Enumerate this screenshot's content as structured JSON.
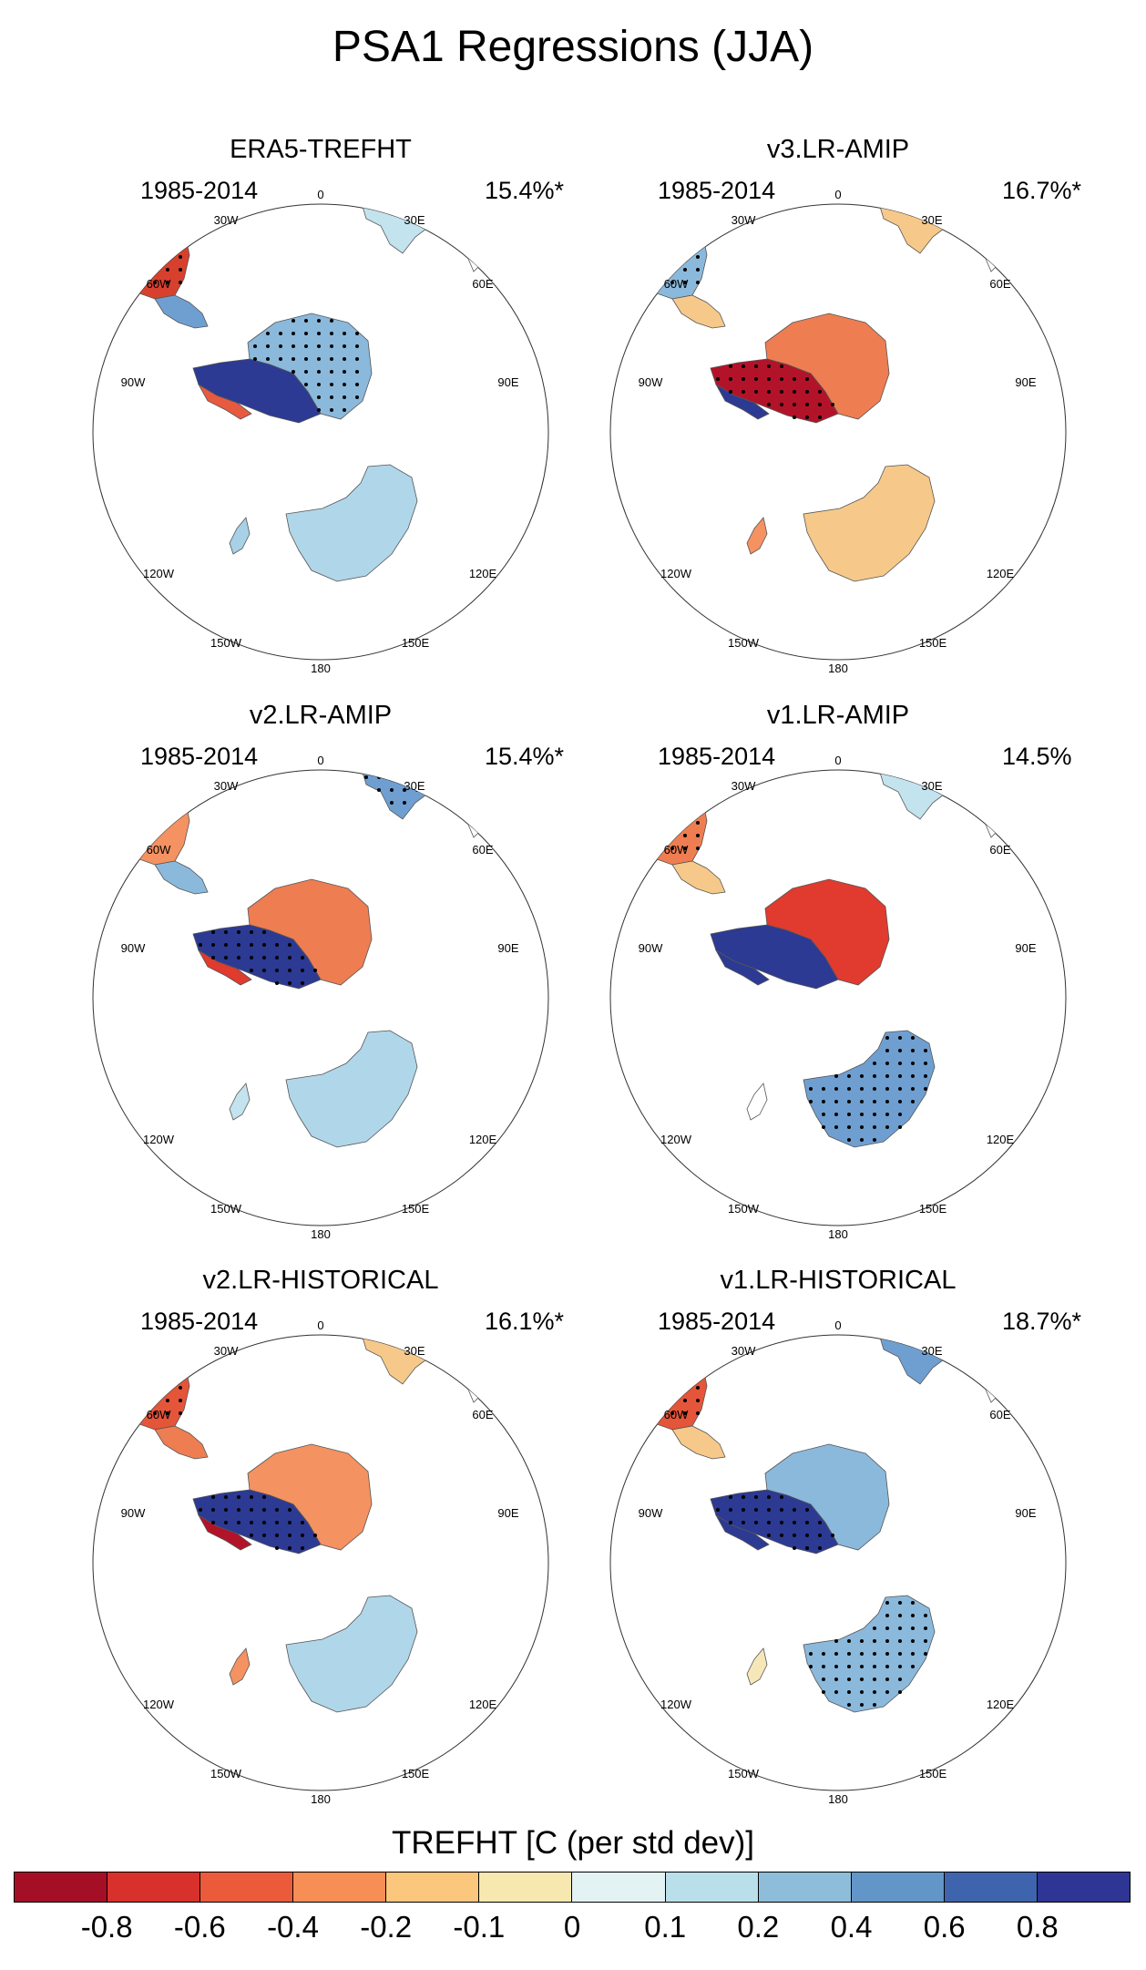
{
  "figure_title": "PSA1 Regressions (JJA)",
  "lon_labels": [
    "0",
    "30E",
    "60E",
    "90E",
    "120E",
    "150E",
    "180",
    "150W",
    "120W",
    "90W",
    "60W",
    "30W"
  ],
  "panels": [
    {
      "title": "ERA5-TREFHT",
      "period": "1985-2014",
      "variance": "15.4%*",
      "regions": {
        "south_america": "#d8402e",
        "s_am_tip": "#6f9fd1",
        "africa": "#c3e3ee",
        "antarctica_east": "#8ab9dc",
        "antarctica_west": "#2c3a93",
        "peninsula": "#e85a3f",
        "australia": "#b0d6ea",
        "nz": "#a8d0e6"
      },
      "stippled": [
        "south_america",
        "antarctica_east"
      ]
    },
    {
      "title": "v3.LR-AMIP",
      "period": "1985-2014",
      "variance": "16.7%*",
      "regions": {
        "south_america": "#8ab9dc",
        "s_am_tip": "#f6c98a",
        "africa": "#f6c98a",
        "antarctica_east": "#ee7d52",
        "antarctica_west": "#b31329",
        "peninsula": "#2c3a93",
        "australia": "#f6c98a",
        "nz": "#f49261"
      },
      "stippled": [
        "antarctica_west",
        "south_america"
      ]
    },
    {
      "title": "v2.LR-AMIP",
      "period": "1985-2014",
      "variance": "15.4%*",
      "regions": {
        "south_america": "#f49261",
        "s_am_tip": "#8ab9dc",
        "africa": "#6f9fd1",
        "antarctica_east": "#ee7d52",
        "antarctica_west": "#2c3a93",
        "peninsula": "#e03b2e",
        "australia": "#b0d6ea",
        "nz": "#c3e3ee"
      },
      "stippled": [
        "africa",
        "antarctica_west"
      ]
    },
    {
      "title": "v1.LR-AMIP",
      "period": "1985-2014",
      "variance": "14.5%",
      "regions": {
        "south_america": "#ee7d52",
        "s_am_tip": "#f6c98a",
        "africa": "#c3e3ee",
        "antarctica_east": "#e03b2e",
        "antarctica_west": "#2c3a93",
        "peninsula": "#2c3a93",
        "australia": "#6f9fd1",
        "nz": "#ffffff"
      },
      "stippled": [
        "australia",
        "south_america"
      ]
    },
    {
      "title": "v2.LR-HISTORICAL",
      "period": "1985-2014",
      "variance": "16.1%*",
      "regions": {
        "south_america": "#e4553a",
        "s_am_tip": "#ee7d52",
        "africa": "#f6c98a",
        "antarctica_east": "#f49261",
        "antarctica_west": "#2c3a93",
        "peninsula": "#b31329",
        "australia": "#b0d6ea",
        "nz": "#f49261"
      },
      "stippled": [
        "south_america",
        "antarctica_west"
      ]
    },
    {
      "title": "v1.LR-HISTORICAL",
      "period": "1985-2014",
      "variance": "18.7%*",
      "regions": {
        "south_america": "#e4553a",
        "s_am_tip": "#f6c98a",
        "africa": "#6f9fd1",
        "antarctica_east": "#8ab9dc",
        "antarctica_west": "#2c3a93",
        "peninsula": "#2c3a93",
        "australia": "#8ab9dc",
        "nz": "#f6e7b8"
      },
      "stippled": [
        "south_america",
        "antarctica_west",
        "australia"
      ]
    }
  ],
  "colorbar": {
    "title": "TREFHT [C (per std dev)]",
    "colors": [
      "#a50f26",
      "#d8302a",
      "#ec5a3c",
      "#f68e55",
      "#fac77c",
      "#f7e8b0",
      "#e3f2f2",
      "#b9dfeb",
      "#8dbdd9",
      "#6396c8",
      "#3f64ae",
      "#2f3594"
    ],
    "tick_labels": [
      "-0.8",
      "-0.6",
      "-0.4",
      "-0.2",
      "-0.1",
      "0",
      "0.1",
      "0.2",
      "0.4",
      "0.6",
      "0.8"
    ]
  }
}
